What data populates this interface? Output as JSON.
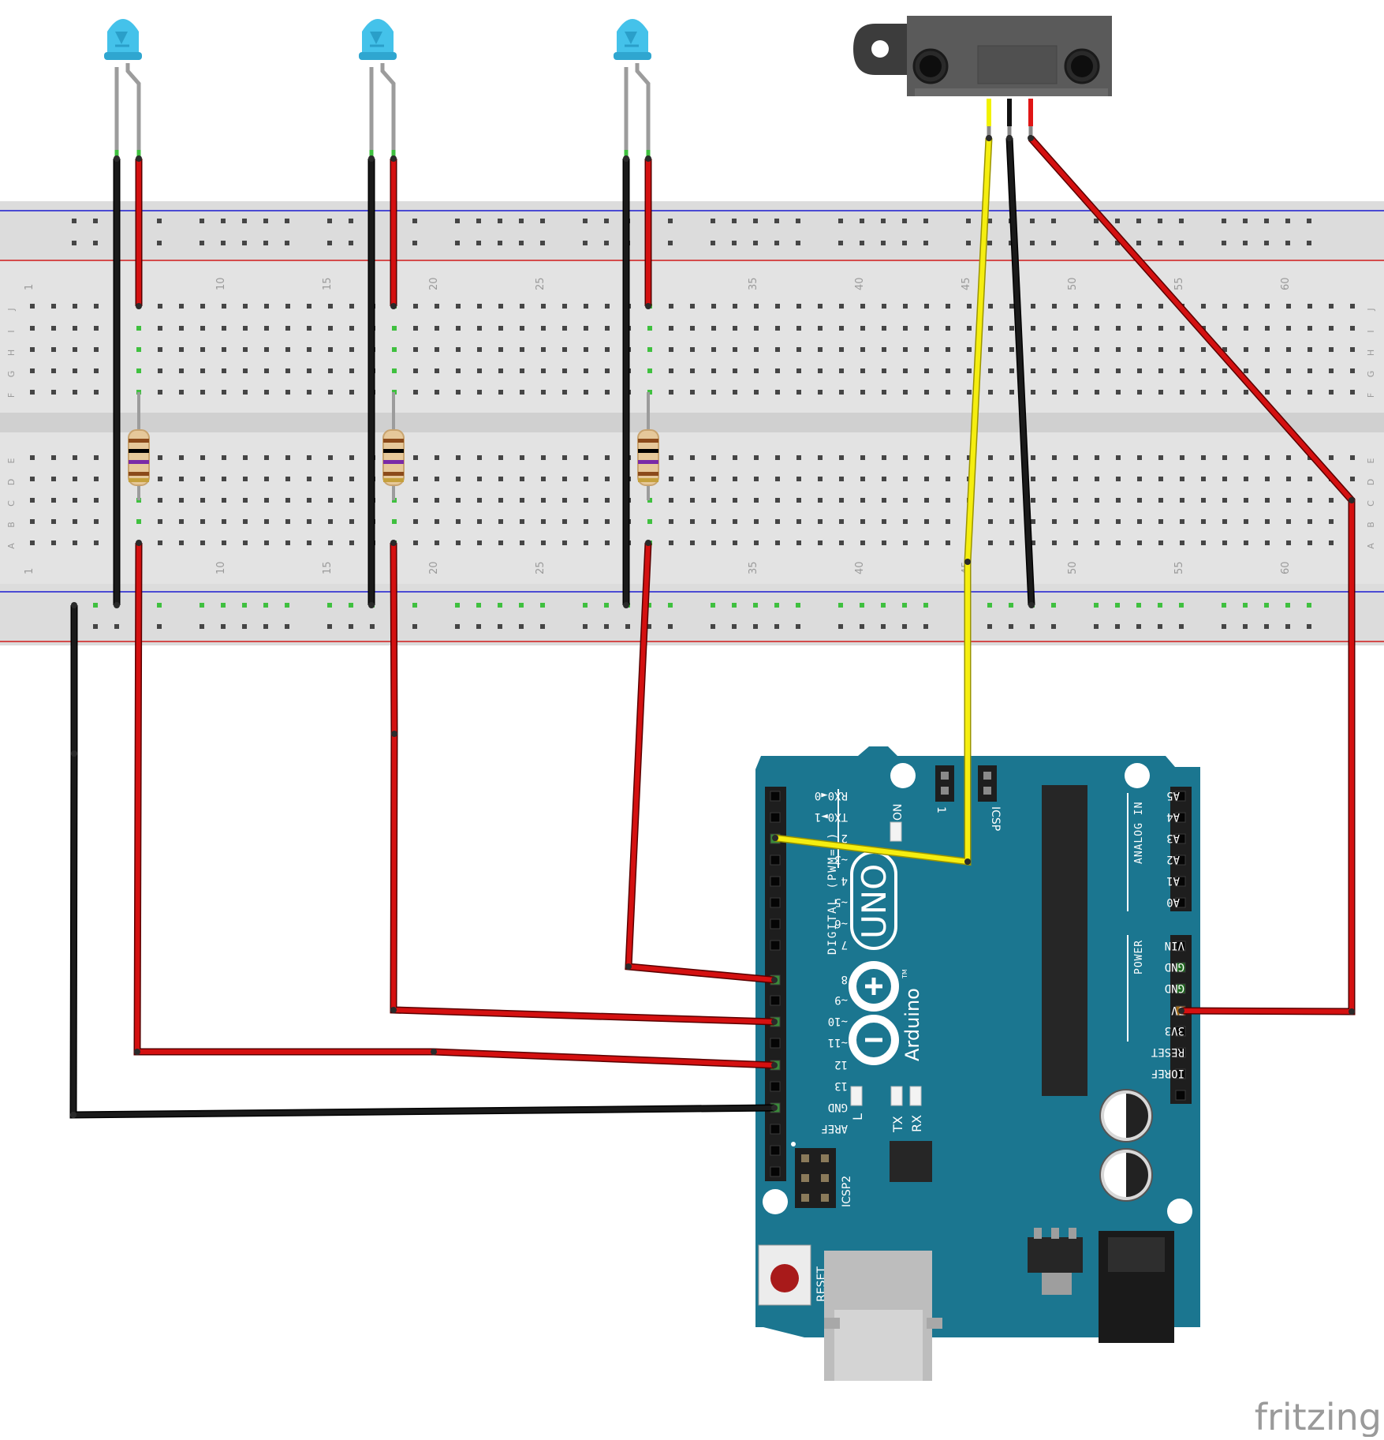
{
  "breadboard": {
    "row_labels_top": [
      "J",
      "I",
      "H",
      "G",
      "F"
    ],
    "row_labels_bottom": [
      "E",
      "D",
      "C",
      "B",
      "A"
    ],
    "column_numbers": [
      "1",
      "10",
      "15",
      "20",
      "25",
      "35",
      "40",
      "45",
      "50",
      "55",
      "60"
    ]
  },
  "arduino": {
    "logo_text": "UNO",
    "brand": "Arduino",
    "trademark": "TM",
    "digital_header_label": "DIGITAL (PWM=~)",
    "digital_pins": [
      "RX0◄0",
      "TX0►1",
      "2",
      "~3",
      "4",
      "~5",
      "~6",
      "7",
      "8",
      "~9",
      "~10",
      "~11",
      "12",
      "13",
      "GND",
      "AREF"
    ],
    "analog_header_label": "ANALOG IN",
    "analog_pins": [
      "A5",
      "A4",
      "A3",
      "A2",
      "A1",
      "A0"
    ],
    "power_header_label": "POWER",
    "power_pins": [
      "VIN",
      "GND",
      "GND",
      "5V",
      "3V3",
      "RESET",
      "IOREF"
    ],
    "on_label": "ON",
    "icsp_label": "ICSP",
    "icsp_pin1": "1",
    "icsp2_label": "ICSP2",
    "led_l_label": "L",
    "tx_label": "TX",
    "rx_label": "RX",
    "reset_label": "RESET"
  },
  "watermark": "fritzing",
  "colors": {
    "board_teal": "#1a7390",
    "wire_red": "#cc1010",
    "wire_black": "#111111",
    "wire_yellow": "#f5ee10",
    "led_blue": "#4fc3e8",
    "breadboard": "#e0e0e0"
  }
}
